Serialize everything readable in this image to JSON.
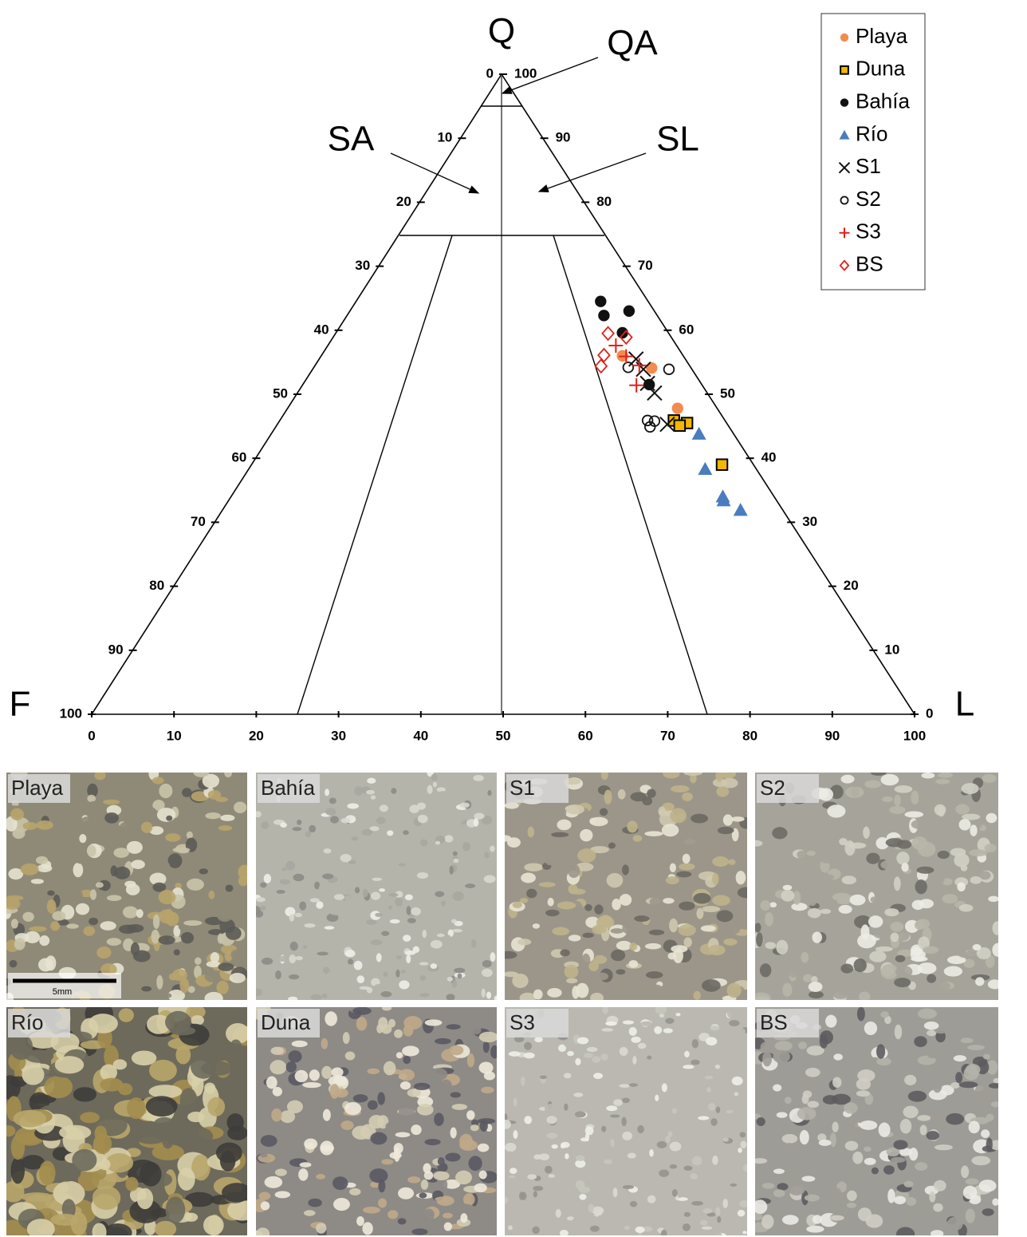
{
  "chart_data": {
    "type": "ternary",
    "apex_labels": {
      "top": "Q",
      "left": "F",
      "right": "L"
    },
    "fields": [
      "QA",
      "SA",
      "SL"
    ],
    "lim": [
      0,
      100
    ],
    "bottom_ticks": [
      0,
      10,
      20,
      30,
      40,
      50,
      60,
      70,
      80,
      90,
      100
    ],
    "left_ticks": [
      0,
      10,
      20,
      30,
      40,
      50,
      60,
      70,
      80,
      90,
      100
    ],
    "right_ticks": [
      100,
      90,
      80,
      70,
      60,
      50,
      40,
      30,
      20,
      10,
      0
    ],
    "series": [
      {
        "name": "Playa",
        "color": "#f28c4e",
        "marker": "circle",
        "Q": [
          56.0,
          54.1,
          47.8
        ],
        "L": [
          36.5,
          41.0,
          47.3
        ]
      },
      {
        "name": "Duna",
        "color": "#f5b800",
        "marker": "square",
        "Q": [
          45.9,
          45.5,
          45.1,
          39.0
        ],
        "L": [
          47.8,
          49.6,
          48.9,
          57.1
        ]
      },
      {
        "name": "Bahía",
        "color": "#111111",
        "marker": "circle",
        "Q": [
          64.5,
          62.3,
          63.0,
          59.6,
          51.5
        ],
        "L": [
          29.6,
          31.1,
          33.8,
          34.7,
          42.0
        ]
      },
      {
        "name": "Río",
        "color": "#4a7cc0",
        "marker": "triangle",
        "Q": [
          43.8,
          38.3,
          34.0,
          33.4,
          31.9
        ],
        "L": [
          51.9,
          55.4,
          59.7,
          60.1,
          62.9
        ]
      },
      {
        "name": "S1",
        "color": "#111111",
        "marker": "cross",
        "Q": [
          55.5,
          53.9,
          51.7,
          50.2,
          45.3
        ],
        "L": [
          38.4,
          40.1,
          41.7,
          43.3,
          47.3
        ]
      },
      {
        "name": "S2",
        "color": "#111111",
        "marker": "open-circle",
        "Q": [
          54.2,
          53.9,
          45.9,
          44.9,
          45.8
        ],
        "L": [
          38.1,
          43.2,
          44.6,
          45.4,
          45.5
        ]
      },
      {
        "name": "S3",
        "color": "#e0201b",
        "marker": "plus",
        "Q": [
          57.6,
          55.9,
          54.5,
          51.4
        ],
        "L": [
          34.9,
          37.0,
          39.3,
          40.5
        ]
      },
      {
        "name": "BS",
        "color": "#e0201b",
        "marker": "diamond",
        "Q": [
          59.5,
          58.9,
          56.1,
          54.4
        ],
        "L": [
          33.0,
          35.5,
          34.2,
          34.7
        ]
      }
    ]
  },
  "panels": [
    "Playa",
    "Bahía",
    "S1",
    "S2",
    "Río",
    "Duna",
    "S3",
    "BS"
  ],
  "scale_bar": "5mm"
}
